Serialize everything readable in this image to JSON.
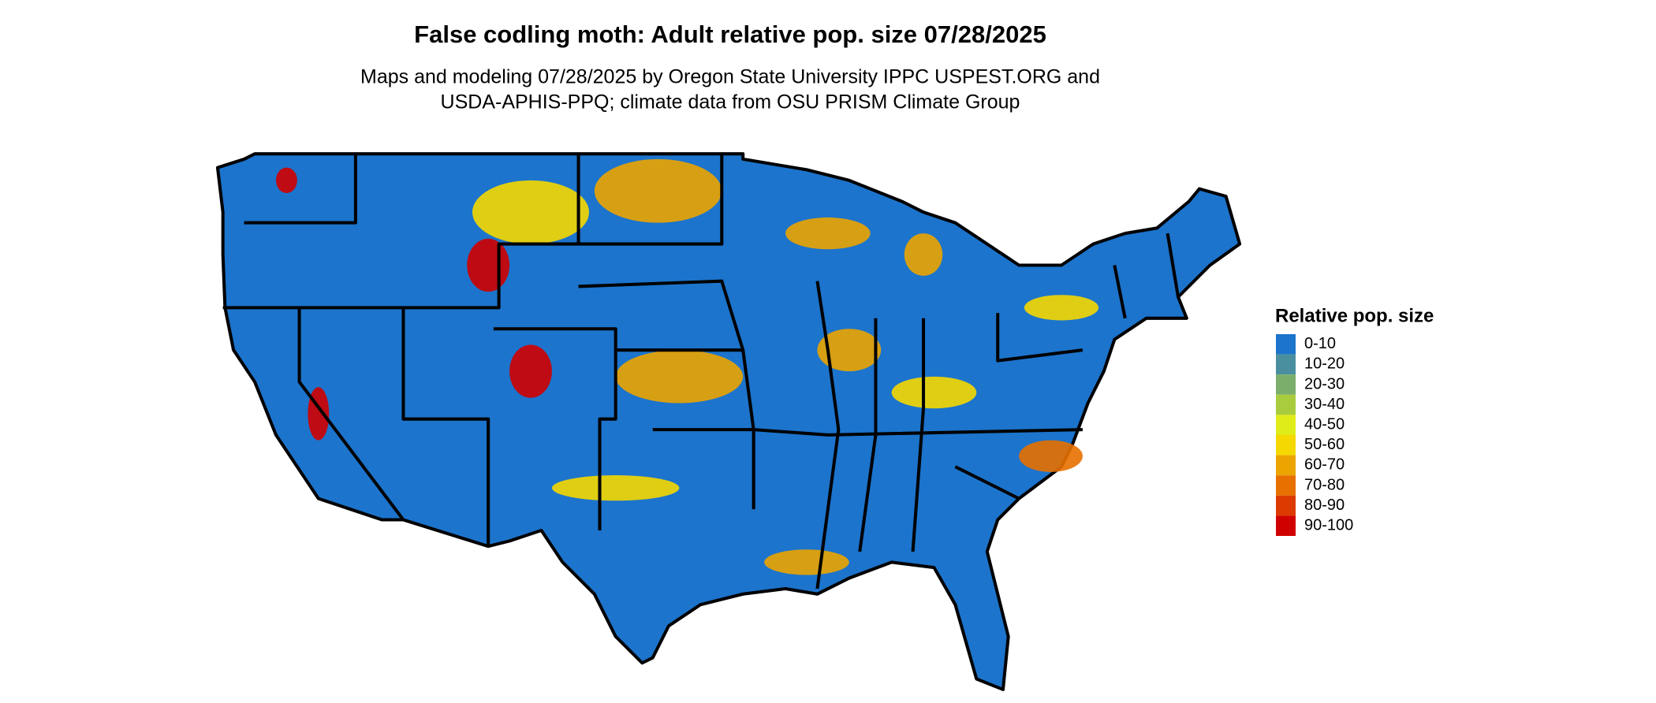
{
  "header": {
    "title": "False codling moth: Adult relative pop. size 07/28/2025",
    "subtitle": [
      "Maps and modeling 07/28/2025 by Oregon State University IPPC USPEST.ORG and",
      "USDA-APHIS-PPQ; climate data from OSU PRISM Climate Group"
    ]
  },
  "legend": {
    "title": "Relative pop. size",
    "items": [
      {
        "label": "0-10",
        "color": "#1c74cc"
      },
      {
        "label": "10-20",
        "color": "#4a8fa0"
      },
      {
        "label": "20-30",
        "color": "#7aae6a"
      },
      {
        "label": "30-40",
        "color": "#a8cc3e"
      },
      {
        "label": "40-50",
        "color": "#e0ec1a"
      },
      {
        "label": "50-60",
        "color": "#f5d800"
      },
      {
        "label": "60-70",
        "color": "#eca400"
      },
      {
        "label": "70-80",
        "color": "#e87000"
      },
      {
        "label": "80-90",
        "color": "#dc3a00"
      },
      {
        "label": "90-100",
        "color": "#d00000"
      }
    ]
  }
}
